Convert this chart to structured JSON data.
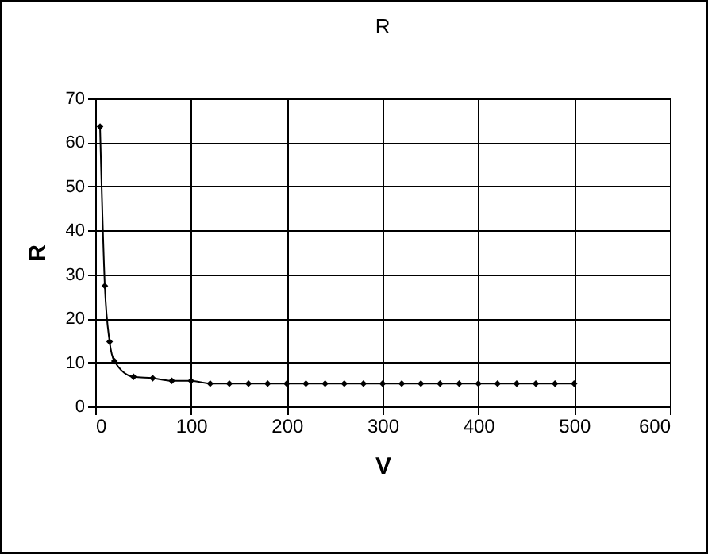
{
  "chart_data": {
    "type": "line",
    "title": "R",
    "xlabel": "V",
    "ylabel": "R",
    "x": [
      5,
      10,
      15,
      20,
      40,
      60,
      80,
      100,
      120,
      140,
      160,
      180,
      200,
      220,
      240,
      260,
      280,
      300,
      320,
      340,
      360,
      380,
      400,
      420,
      440,
      460,
      480,
      500
    ],
    "series": [
      {
        "color": "#000000",
        "values": [
          63.6,
          27.4,
          14.7,
          10.3,
          6.7,
          6.4,
          5.8,
          5.8,
          5.2,
          5.2,
          5.2,
          5.2,
          5.2,
          5.2,
          5.2,
          5.2,
          5.2,
          5.2,
          5.2,
          5.2,
          5.2,
          5.2,
          5.2,
          5.2,
          5.2,
          5.2,
          5.2,
          5.2
        ]
      }
    ],
    "xlim": [
      0,
      600
    ],
    "xticks": [
      0,
      100,
      200,
      300,
      400,
      500,
      600
    ],
    "ylim": [
      0,
      70
    ],
    "yticks": [
      0,
      10,
      20,
      30,
      40,
      50,
      60,
      70
    ],
    "grid": true,
    "marker": "diamond",
    "line_style": "solid"
  }
}
